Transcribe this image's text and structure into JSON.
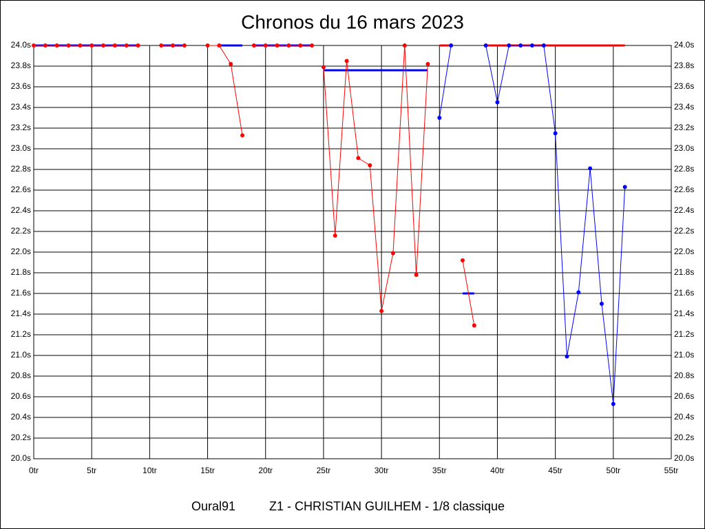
{
  "chart_data": {
    "type": "line",
    "title": "Chronos du 16 mars 2023",
    "footer_left": "Oural91",
    "footer_right": "Z1 - CHRISTIAN GUILHEM - 1/8 classique",
    "xlim": [
      0,
      55
    ],
    "xticks": [
      {
        "value": 0,
        "label": "0tr"
      },
      {
        "value": 5,
        "label": "5tr"
      },
      {
        "value": 10,
        "label": "10tr"
      },
      {
        "value": 15,
        "label": "15tr"
      },
      {
        "value": 20,
        "label": "20tr"
      },
      {
        "value": 25,
        "label": "25tr"
      },
      {
        "value": 30,
        "label": "30tr"
      },
      {
        "value": 35,
        "label": "35tr"
      },
      {
        "value": 40,
        "label": "40tr"
      },
      {
        "value": 45,
        "label": "45tr"
      },
      {
        "value": 50,
        "label": "50tr"
      },
      {
        "value": 55,
        "label": "55tr"
      }
    ],
    "ylim": [
      20.0,
      24.0
    ],
    "yticks": [
      {
        "value": 20.0,
        "label": "20.0s"
      },
      {
        "value": 20.2,
        "label": "20.2s"
      },
      {
        "value": 20.4,
        "label": "20.4s"
      },
      {
        "value": 20.6,
        "label": "20.6s"
      },
      {
        "value": 20.8,
        "label": "20.8s"
      },
      {
        "value": 21.0,
        "label": "21.0s"
      },
      {
        "value": 21.2,
        "label": "21.2s"
      },
      {
        "value": 21.4,
        "label": "21.4s"
      },
      {
        "value": 21.6,
        "label": "21.6s"
      },
      {
        "value": 21.8,
        "label": "21.8s"
      },
      {
        "value": 22.0,
        "label": "22.0s"
      },
      {
        "value": 22.2,
        "label": "22.2s"
      },
      {
        "value": 22.4,
        "label": "22.4s"
      },
      {
        "value": 22.6,
        "label": "22.6s"
      },
      {
        "value": 22.8,
        "label": "22.8s"
      },
      {
        "value": 23.0,
        "label": "23.0s"
      },
      {
        "value": 23.2,
        "label": "23.2s"
      },
      {
        "value": 23.4,
        "label": "23.4s"
      },
      {
        "value": 23.6,
        "label": "23.6s"
      },
      {
        "value": 23.8,
        "label": "23.8s"
      },
      {
        "value": 24.0,
        "label": "24.0s"
      }
    ],
    "grid": true,
    "series": [
      {
        "color": "#0000ff",
        "markers": false,
        "x": [
          0,
          9
        ],
        "values": [
          24.0,
          24.0
        ]
      },
      {
        "color": "#0000ff",
        "markers": false,
        "x": [
          11,
          13
        ],
        "values": [
          24.0,
          24.0
        ]
      },
      {
        "color": "#0000ff",
        "markers": false,
        "x": [
          16,
          18
        ],
        "values": [
          24.0,
          24.0
        ]
      },
      {
        "color": "#0000ff",
        "markers": false,
        "x": [
          19,
          24
        ],
        "values": [
          24.0,
          24.0
        ]
      },
      {
        "color": "#0000ff",
        "markers": false,
        "x": [
          25,
          34
        ],
        "values": [
          23.76,
          23.76
        ]
      },
      {
        "color": "#ff0000",
        "markers": false,
        "x": [
          35,
          36
        ],
        "values": [
          24.0,
          24.0
        ]
      },
      {
        "color": "#0000ff",
        "markers": false,
        "x": [
          37,
          38
        ],
        "values": [
          21.6,
          21.6
        ]
      },
      {
        "color": "#ff0000",
        "markers": false,
        "x": [
          39,
          51
        ],
        "values": [
          24.0,
          24.0
        ]
      },
      {
        "color": "#ff0000",
        "markers": true,
        "x": [
          0,
          1,
          2,
          3,
          4,
          5,
          6,
          7,
          8,
          9
        ],
        "values": [
          24.0,
          24.0,
          24.0,
          24.0,
          24.0,
          24.0,
          24.0,
          24.0,
          24.0,
          24.0
        ]
      },
      {
        "color": "#ff0000",
        "markers": true,
        "x": [
          11,
          12,
          13
        ],
        "values": [
          24.0,
          24.0,
          24.0
        ]
      },
      {
        "color": "#ff0000",
        "markers": true,
        "x": [
          15,
          16,
          17,
          18
        ],
        "values": [
          24.0,
          24.0,
          23.82,
          23.13
        ]
      },
      {
        "color": "#ff0000",
        "markers": true,
        "x": [
          19,
          20,
          21,
          22,
          23,
          24
        ],
        "values": [
          24.0,
          24.0,
          24.0,
          24.0,
          24.0,
          24.0
        ]
      },
      {
        "color": "#ff0000",
        "markers": true,
        "x": [
          25,
          26,
          27,
          28,
          29,
          30,
          31,
          32,
          33,
          34
        ],
        "values": [
          23.79,
          22.16,
          23.85,
          22.91,
          22.84,
          21.43,
          21.99,
          24.0,
          21.78,
          23.82
        ]
      },
      {
        "color": "#0000ff",
        "markers": true,
        "x": [
          35,
          36
        ],
        "values": [
          23.3,
          24.0
        ]
      },
      {
        "color": "#ff0000",
        "markers": true,
        "x": [
          37,
          38
        ],
        "values": [
          21.92,
          21.29
        ]
      },
      {
        "color": "#0000ff",
        "markers": true,
        "x": [
          39,
          40,
          41,
          42,
          43,
          44,
          45,
          46,
          47,
          48,
          49,
          50,
          51
        ],
        "values": [
          24.0,
          23.45,
          24.0,
          24.0,
          24.0,
          24.0,
          23.15,
          20.99,
          21.61,
          22.81,
          21.5,
          20.53,
          22.63
        ]
      }
    ]
  }
}
